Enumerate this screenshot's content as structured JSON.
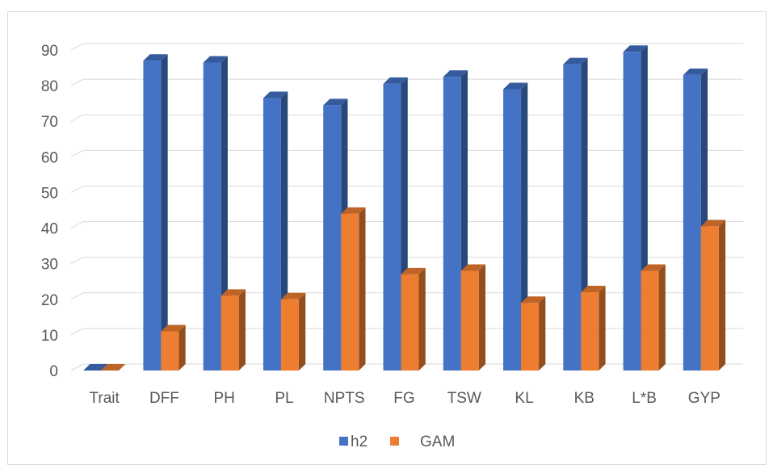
{
  "chart_data": {
    "type": "bar",
    "style": "3d-clustered-column",
    "categories": [
      "Trait",
      "DFF",
      "PH",
      "PL",
      "NPTS",
      "FG",
      "TSW",
      "KL",
      "KB",
      "L*B",
      "GYP"
    ],
    "series": [
      {
        "name": "h2",
        "color": "#4472C4",
        "values": [
          0,
          87,
          86.5,
          76.5,
          74.5,
          80.5,
          82.5,
          79,
          86,
          89.5,
          83
        ]
      },
      {
        "name": "GAM",
        "color": "#ED7D31",
        "values": [
          0,
          11,
          21,
          20,
          44,
          27,
          28,
          19,
          22,
          28,
          40.5
        ]
      }
    ],
    "ylim": [
      0,
      90
    ],
    "yticks": [
      0,
      10,
      20,
      30,
      40,
      50,
      60,
      70,
      80,
      90
    ],
    "grid": true,
    "legend_position": "bottom",
    "title": "",
    "xlabel": "",
    "ylabel": ""
  },
  "legend": {
    "h2": "h2",
    "gam": "GAM"
  }
}
